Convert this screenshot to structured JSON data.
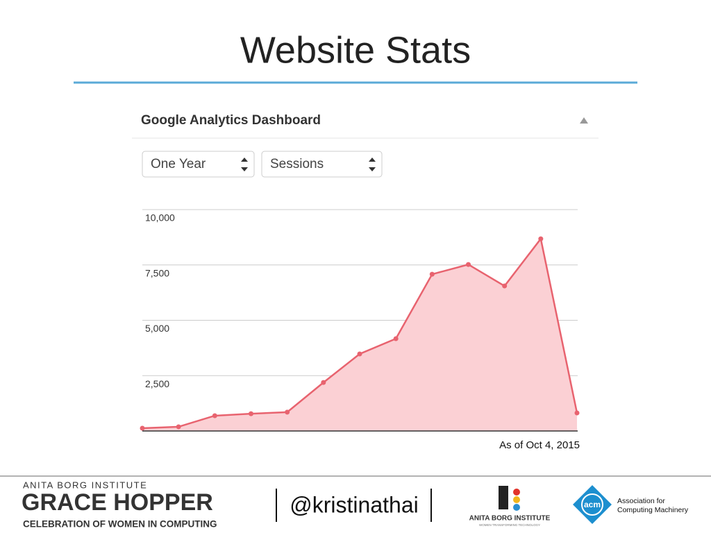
{
  "slide": {
    "title": "Website Stats",
    "panel_title": "Google Analytics Dashboard",
    "period_select": "One Year",
    "metric_select": "Sessions",
    "note": "As of Oct 4, 2015",
    "footer": {
      "institute": "ANITA BORG INSTITUTE",
      "event": "GRACE HOPPER",
      "event_subtitle": "CELEBRATION OF WOMEN IN COMPUTING",
      "handle": "@kristinathai",
      "abi_logo": "ANITA BORG INSTITUTE",
      "abi_tagline": "WOMEN TRANSFORMING TECHNOLOGY",
      "acm_logo": "acm",
      "acm_name_1": "Association for",
      "acm_name_2": "Computing Machinery"
    }
  },
  "chart_data": {
    "type": "area",
    "values": [
      125,
      190,
      690,
      780,
      850,
      2190,
      3480,
      4170,
      7080,
      7520,
      6550,
      8680,
      815
    ],
    "color": "#e8636f",
    "fill": "#fbd0d4",
    "ylim": [
      0,
      10000
    ],
    "yticks": [
      {
        "value": 2500,
        "label": "2,500"
      },
      {
        "value": 5000,
        "label": "5,000"
      },
      {
        "value": 7500,
        "label": "7,500"
      },
      {
        "value": 10000,
        "label": "10,000"
      }
    ],
    "grid": true
  }
}
